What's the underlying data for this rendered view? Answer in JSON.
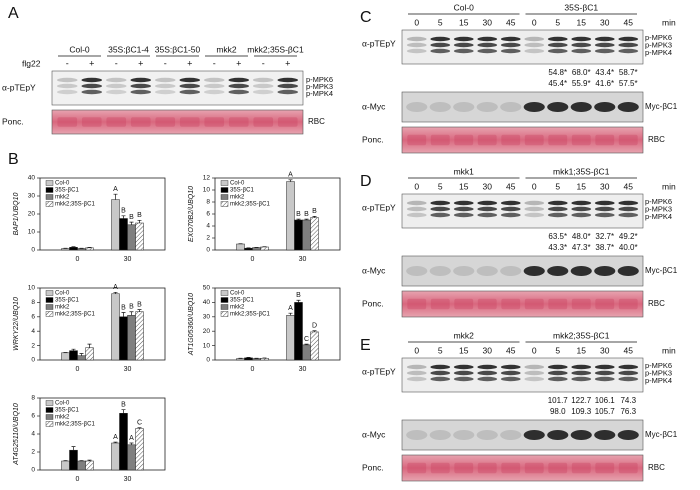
{
  "panels": {
    "A": {
      "letter": "A",
      "groups": [
        "Col-0",
        "35S:βC1-4",
        "35S:βC1-50",
        "mkk2",
        "mkk2;35S-βC1"
      ],
      "treatment": "flg22",
      "signs": [
        "-",
        "+",
        "-",
        "+",
        "-",
        "+",
        "-",
        "+",
        "-",
        "+"
      ],
      "row_labels": [
        "α-pTEpY",
        "Ponc."
      ],
      "band_labels": [
        "p-MPK6",
        "p-MPK3",
        "p-MPK4"
      ],
      "rbc": "RBC"
    },
    "B": {
      "letter": "B"
    },
    "C": {
      "letter": "C",
      "groups": [
        "Col-0",
        "35S-βC1"
      ],
      "lanes": [
        "0",
        "5",
        "15",
        "30",
        "45",
        "0",
        "5",
        "15",
        "30",
        "45"
      ],
      "unit": "min",
      "row_labels": [
        "α-pTEpY",
        "α-Myc",
        "Ponc."
      ],
      "band_labels": [
        "p-MPK6",
        "p-MPK3",
        "p-MPK4"
      ],
      "myc_label": "Myc-βC1",
      "rbc": "RBC",
      "quant": [
        [
          "54.8*",
          "68.0*",
          "43.4*",
          "58.7*"
        ],
        [
          "45.4*",
          "55.9*",
          "41.6*",
          "57.5*"
        ]
      ]
    },
    "D": {
      "letter": "D",
      "groups": [
        "mkk1",
        "mkk1;35S-βC1"
      ],
      "lanes": [
        "0",
        "5",
        "15",
        "30",
        "45",
        "0",
        "5",
        "15",
        "30",
        "45"
      ],
      "unit": "min",
      "row_labels": [
        "α-pTEpY",
        "α-Myc",
        "Ponc."
      ],
      "band_labels": [
        "p-MPK6",
        "p-MPK3",
        "p-MPK4"
      ],
      "myc_label": "Myc-βC1",
      "rbc": "RBC",
      "quant": [
        [
          "63.5*",
          "48.0*",
          "32.7*",
          "49.2*"
        ],
        [
          "43.3*",
          "47.3*",
          "38.7*",
          "40.0*"
        ]
      ]
    },
    "E": {
      "letter": "E",
      "groups": [
        "mkk2",
        "mkk2;35S-βC1"
      ],
      "lanes": [
        "0",
        "5",
        "15",
        "30",
        "45",
        "0",
        "5",
        "15",
        "30",
        "45"
      ],
      "unit": "min",
      "row_labels": [
        "α-pTEpY",
        "α-Myc",
        "Ponc."
      ],
      "band_labels": [
        "p-MPK6",
        "p-MPK3",
        "p-MPK4"
      ],
      "myc_label": "Myc-βC1",
      "rbc": "RBC",
      "quant": [
        [
          "101.7",
          "122.7",
          "106.1",
          "74.3"
        ],
        [
          "98.0",
          "109.3",
          "105.7",
          "76.3"
        ]
      ]
    }
  },
  "chart_data": [
    {
      "type": "bar",
      "y_label": "BAP1/UBQ10",
      "categories": [
        "0",
        "30"
      ],
      "ylim": [
        0,
        40
      ],
      "yticks": [
        0,
        10,
        20,
        30,
        40
      ],
      "series": [
        {
          "name": "Col-0",
          "color": "#c8c8c8",
          "values": [
            0.8,
            28
          ],
          "errors": [
            0.2,
            3
          ],
          "letters": [
            null,
            "A"
          ]
        },
        {
          "name": "35S-βC1",
          "color": "#000000",
          "values": [
            1.5,
            17.5
          ],
          "errors": [
            0.3,
            1.5
          ],
          "letters": [
            null,
            "B"
          ]
        },
        {
          "name": "mkk2",
          "color": "#7f7f7f",
          "values": [
            0.8,
            14
          ],
          "errors": [
            0.2,
            1.5
          ],
          "letters": [
            null,
            "B"
          ]
        },
        {
          "name": "mkk2;35S-βC1",
          "color": "#ffffff",
          "hatch": true,
          "values": [
            1.2,
            15
          ],
          "errors": [
            0.3,
            1.5
          ],
          "letters": [
            null,
            "B"
          ]
        }
      ]
    },
    {
      "type": "bar",
      "y_label": "EXO70B2/UBQ10",
      "categories": [
        "0",
        "30"
      ],
      "ylim": [
        0,
        12
      ],
      "yticks": [
        0,
        2,
        4,
        6,
        8,
        10,
        12
      ],
      "series": [
        {
          "name": "Col-0",
          "color": "#c8c8c8",
          "values": [
            1.0,
            11.4
          ],
          "errors": [
            0.05,
            0.3
          ],
          "letters": [
            null,
            "A"
          ]
        },
        {
          "name": "35S-βC1",
          "color": "#000000",
          "values": [
            0.3,
            5.0
          ],
          "errors": [
            0.05,
            0.15
          ],
          "letters": [
            null,
            "B"
          ]
        },
        {
          "name": "mkk2",
          "color": "#7f7f7f",
          "values": [
            0.4,
            5.0
          ],
          "errors": [
            0.05,
            0.15
          ],
          "letters": [
            null,
            "B"
          ]
        },
        {
          "name": "mkk2;35S-βC1",
          "color": "#ffffff",
          "hatch": true,
          "values": [
            0.5,
            5.4
          ],
          "errors": [
            0.05,
            0.2
          ],
          "letters": [
            null,
            "B"
          ]
        }
      ]
    },
    {
      "type": "bar",
      "y_label": "WRKY22/UBQ10",
      "categories": [
        "0",
        "30"
      ],
      "ylim": [
        0,
        10
      ],
      "yticks": [
        0,
        2,
        4,
        6,
        8,
        10
      ],
      "series": [
        {
          "name": "Col-0",
          "color": "#c8c8c8",
          "values": [
            1.0,
            9.2
          ],
          "errors": [
            0.05,
            0.2
          ],
          "letters": [
            null,
            "A"
          ]
        },
        {
          "name": "35S-βC1",
          "color": "#000000",
          "values": [
            1.3,
            6.0
          ],
          "errors": [
            0.2,
            0.6
          ],
          "letters": [
            null,
            "B"
          ]
        },
        {
          "name": "mkk2",
          "color": "#7f7f7f",
          "values": [
            0.6,
            6.2
          ],
          "errors": [
            0.3,
            0.5
          ],
          "letters": [
            null,
            "B"
          ]
        },
        {
          "name": "mkk2;35S-βC1",
          "color": "#ffffff",
          "hatch": true,
          "values": [
            1.7,
            6.7
          ],
          "errors": [
            0.5,
            0.3
          ],
          "letters": [
            null,
            "B"
          ]
        }
      ]
    },
    {
      "type": "bar",
      "y_label": "AT1G05360/UBQ10",
      "categories": [
        "0",
        "30"
      ],
      "ylim": [
        0,
        50
      ],
      "yticks": [
        0,
        10,
        20,
        30,
        40,
        50
      ],
      "series": [
        {
          "name": "Col-0",
          "color": "#c8c8c8",
          "values": [
            1.0,
            31
          ],
          "errors": [
            0.2,
            1.5
          ],
          "letters": [
            null,
            "A"
          ]
        },
        {
          "name": "35S-βC1",
          "color": "#000000",
          "values": [
            1.5,
            40
          ],
          "errors": [
            0.3,
            1.5
          ],
          "letters": [
            null,
            "B"
          ]
        },
        {
          "name": "mkk2",
          "color": "#7f7f7f",
          "values": [
            1.0,
            10.5
          ],
          "errors": [
            0.2,
            0.5
          ],
          "letters": [
            null,
            "C"
          ]
        },
        {
          "name": "mkk2;35S-βC1",
          "color": "#ffffff",
          "hatch": true,
          "values": [
            1.2,
            19.5
          ],
          "errors": [
            0.2,
            0.8
          ],
          "letters": [
            null,
            "D"
          ]
        }
      ]
    },
    {
      "type": "bar",
      "y_label": "AT4G25110/UBQ10",
      "categories": [
        "0",
        "30"
      ],
      "ylim": [
        0,
        8
      ],
      "yticks": [
        0,
        2,
        4,
        6,
        8
      ],
      "series": [
        {
          "name": "Col-0",
          "color": "#c8c8c8",
          "values": [
            1.0,
            3.0
          ],
          "errors": [
            0.05,
            0.1
          ],
          "letters": [
            null,
            "A"
          ]
        },
        {
          "name": "35S-βC1",
          "color": "#000000",
          "values": [
            2.2,
            6.3
          ],
          "errors": [
            0.4,
            0.4
          ],
          "letters": [
            null,
            "B"
          ]
        },
        {
          "name": "mkk2",
          "color": "#7f7f7f",
          "values": [
            1.0,
            2.8
          ],
          "errors": [
            0.05,
            0.2
          ],
          "letters": [
            null,
            "A"
          ]
        },
        {
          "name": "mkk2;35S-βC1",
          "color": "#ffffff",
          "hatch": true,
          "values": [
            1.0,
            4.6
          ],
          "errors": [
            0.1,
            0.1
          ],
          "letters": [
            null,
            "C"
          ]
        }
      ]
    }
  ]
}
